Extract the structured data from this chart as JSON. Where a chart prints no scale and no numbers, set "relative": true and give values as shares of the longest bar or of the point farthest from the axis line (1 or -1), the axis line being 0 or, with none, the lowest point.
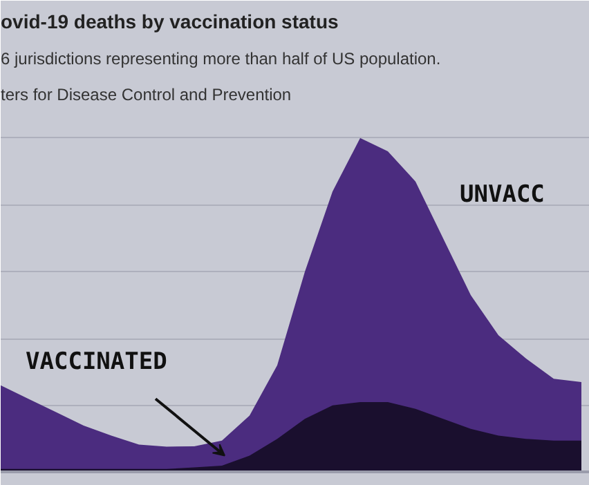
{
  "chart_data": {
    "type": "area",
    "title": "ovid-19 deaths by vaccination status",
    "subtitle": "6 jurisdictions representing more than half of US population.",
    "annotations": [
      "ters for Disease Control and Prevention",
      "VACCINATED",
      "UNVACC"
    ],
    "relative": true,
    "grid": "y",
    "categories": [
      null,
      null,
      null,
      null,
      null,
      null,
      null,
      null,
      null,
      null,
      null,
      null,
      null,
      null,
      null,
      null,
      null,
      null,
      null,
      null,
      null,
      null
    ],
    "series": [
      {
        "color": "#4b2c7f",
        "values": [
          0.26,
          0.22,
          0.18,
          0.14,
          0.11,
          0.083,
          0.077,
          0.078,
          0.095,
          0.17,
          0.32,
          0.6,
          0.84,
          1,
          0.96,
          0.87,
          0.7,
          0.53,
          0.41,
          0.34,
          0.28,
          0.27
        ]
      },
      {
        "color": "#1a0f2e",
        "values": [
          0.01,
          0.01,
          0.01,
          0.01,
          0.01,
          0.01,
          0.01,
          0.015,
          0.02,
          0.05,
          0.1,
          0.16,
          0.2,
          0.21,
          0.21,
          0.19,
          0.16,
          0.13,
          0.11,
          0.1,
          0.095,
          0.095
        ]
      }
    ]
  }
}
